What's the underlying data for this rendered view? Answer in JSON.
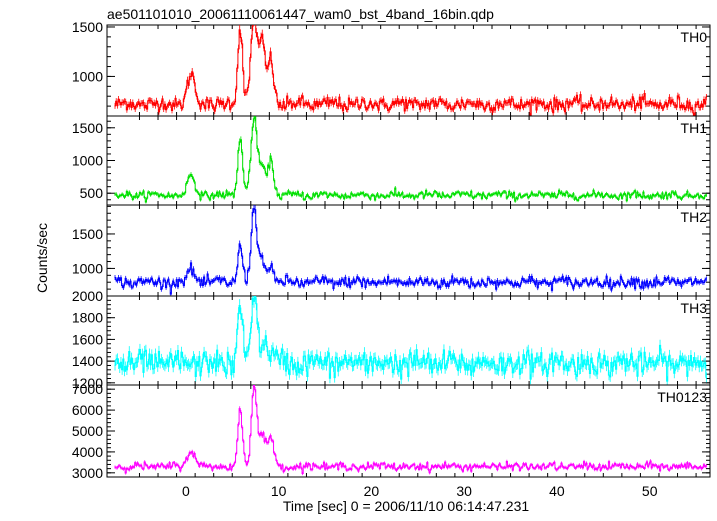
{
  "chart_data": {
    "type": "line",
    "title": "ae501101010_20061110061447_wam0_bst_4band_16bin.qdp",
    "xlabel": "Time [sec] 0 = 2006/11/10 06:14:47.231",
    "ylabel": "Counts/sec",
    "xlim": [
      -8.5,
      56.5
    ],
    "x_ticks": [
      0,
      10,
      20,
      30,
      40,
      50
    ],
    "grid": false,
    "panels": [
      {
        "name": "TH0",
        "color": "#ff0000",
        "ylim": [
          600,
          1520
        ],
        "y_ticks": [
          1000,
          1500
        ],
        "baseline": 720,
        "noise": 35,
        "peaks": [
          [
            0.5,
            300,
            0.4
          ],
          [
            5.8,
            780,
            0.25
          ],
          [
            7.3,
            900,
            0.35
          ],
          [
            8.2,
            600,
            0.3
          ],
          [
            9.1,
            460,
            0.3
          ]
        ]
      },
      {
        "name": "TH1",
        "color": "#00e000",
        "ylim": [
          320,
          1680
        ],
        "y_ticks": [
          500,
          1000,
          1500
        ],
        "baseline": 470,
        "noise": 30,
        "peaks": [
          [
            0.5,
            300,
            0.4
          ],
          [
            5.8,
            900,
            0.25
          ],
          [
            7.3,
            1150,
            0.35
          ],
          [
            8.2,
            400,
            0.3
          ],
          [
            9.1,
            550,
            0.3
          ]
        ]
      },
      {
        "name": "TH2",
        "color": "#0000ff",
        "ylim": [
          600,
          1920
        ],
        "y_ticks": [
          1000,
          1500
        ],
        "baseline": 800,
        "noise": 40,
        "peaks": [
          [
            0.5,
            180,
            0.4
          ],
          [
            5.8,
            550,
            0.25
          ],
          [
            7.3,
            1100,
            0.3
          ],
          [
            8.2,
            350,
            0.3
          ],
          [
            9.1,
            200,
            0.3
          ]
        ]
      },
      {
        "name": "TH3",
        "color": "#00ffff",
        "ylim": [
          1180,
          2000
        ],
        "y_ticks": [
          1200,
          1400,
          1600,
          1800,
          2000
        ],
        "baseline": 1380,
        "noise": 55,
        "peaks": [
          [
            5.8,
            550,
            0.25
          ],
          [
            7.3,
            650,
            0.3
          ],
          [
            8.5,
            180,
            0.6
          ]
        ]
      },
      {
        "name": "TH0123",
        "color": "#ff00ff",
        "ylim": [
          2800,
          7200
        ],
        "y_ticks": [
          3000,
          4000,
          5000,
          6000,
          7000
        ],
        "baseline": 3300,
        "noise": 90,
        "peaks": [
          [
            0.5,
            800,
            0.4
          ],
          [
            5.8,
            2700,
            0.25
          ],
          [
            7.3,
            3800,
            0.3
          ],
          [
            8.2,
            1500,
            0.35
          ],
          [
            9.1,
            1400,
            0.3
          ]
        ]
      }
    ]
  }
}
